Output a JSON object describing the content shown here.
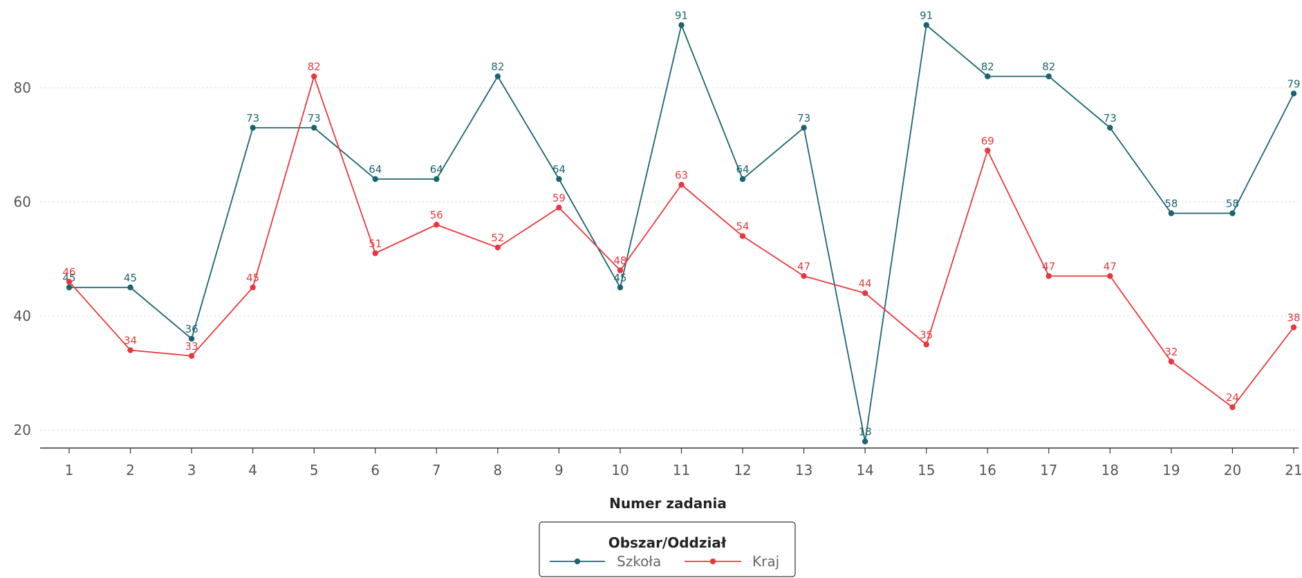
{
  "chart_data": {
    "type": "line",
    "x": [
      1,
      2,
      3,
      4,
      5,
      6,
      7,
      8,
      9,
      10,
      11,
      12,
      13,
      14,
      15,
      16,
      17,
      18,
      19,
      20,
      21
    ],
    "series": [
      {
        "name": "Szkoła",
        "color": "#1a6470",
        "values": [
          45,
          45,
          36,
          73,
          73,
          64,
          64,
          82,
          64,
          45,
          91,
          64,
          73,
          18,
          91,
          82,
          82,
          73,
          58,
          58,
          79
        ]
      },
      {
        "name": "Kraj",
        "color": "#e8383d",
        "values": [
          46,
          34,
          33,
          45,
          82,
          51,
          56,
          52,
          59,
          48,
          63,
          54,
          47,
          44,
          35,
          69,
          47,
          47,
          32,
          24,
          38
        ]
      }
    ],
    "xlabel": "Numer zadania",
    "ylabel": "",
    "title": "",
    "yticks": [
      20,
      40,
      60,
      80
    ],
    "ylim": [
      17,
      93
    ],
    "xlim": [
      0.5,
      21
    ],
    "grid": true,
    "legend": {
      "title": "Obszar/Oddział",
      "placement": "bottom-center"
    }
  }
}
